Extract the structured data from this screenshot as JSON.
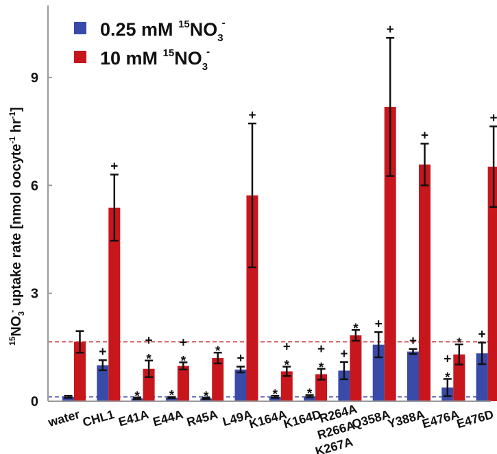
{
  "chart_data": {
    "type": "bar",
    "ylabel": {
      "sup_1": "15",
      "part_1": "NO",
      "sub_3": "3",
      "sup_minus": "-",
      "part_2": " uptake rate [nmol oocyte",
      "sup_neg1a": "-1",
      "part_3": " hr",
      "sup_neg1b": "-1",
      "part_4": "]"
    },
    "ylim": [
      0,
      11
    ],
    "yticks": [
      0,
      3,
      6,
      9
    ],
    "categories": [
      "water",
      "CHL1",
      "E41A",
      "E44A",
      "R45A",
      "L49A",
      "K164A",
      "K164D",
      "R264A\nR266A\nK267A",
      "Q358A",
      "Y388A",
      "E476A",
      "E476D"
    ],
    "series": [
      {
        "name": "0.25 mM 15NO3-",
        "legend": {
          "prefix": "0.25 mM ",
          "sup": "15",
          "main": "NO",
          "sub": "3",
          "sup2": "-"
        },
        "color": "#3a4aa8",
        "values": [
          0.12,
          1.0,
          0.08,
          0.1,
          0.08,
          0.88,
          0.12,
          0.14,
          0.85,
          1.57,
          1.38,
          0.38,
          1.33
        ],
        "errors": [
          0.03,
          0.14,
          0.02,
          0.02,
          0.02,
          0.08,
          0.03,
          0.03,
          0.24,
          0.35,
          0.07,
          0.24,
          0.3
        ],
        "marks": [
          [],
          [
            "+"
          ],
          [
            "*"
          ],
          [
            "*"
          ],
          [
            "*"
          ],
          [
            "+"
          ],
          [
            "*"
          ],
          [
            "*"
          ],
          [
            "+"
          ],
          [
            "+"
          ],
          [
            "+"
          ],
          [
            "*",
            "+"
          ],
          [
            "+"
          ]
        ]
      },
      {
        "name": "10 mM 15NO3-",
        "legend": {
          "prefix": "10 mM ",
          "sup": "15",
          "main": "NO",
          "sub": "3",
          "sup2": "-"
        },
        "color": "#c8161d",
        "values": [
          1.65,
          5.38,
          0.9,
          0.98,
          1.2,
          5.72,
          0.83,
          0.75,
          1.83,
          8.18,
          6.58,
          1.3,
          6.52
        ],
        "errors": [
          0.3,
          0.92,
          0.23,
          0.1,
          0.15,
          2.0,
          0.13,
          0.15,
          0.15,
          1.92,
          0.58,
          0.28,
          1.12
        ],
        "marks": [
          [],
          [
            "+"
          ],
          [
            "*",
            "+"
          ],
          [
            "*",
            "+"
          ],
          [
            "*"
          ],
          [
            "+"
          ],
          [
            "*",
            "+"
          ],
          [
            "*",
            "+"
          ],
          [
            "*"
          ],
          [
            "+"
          ],
          [
            "+"
          ],
          [
            "*"
          ],
          [
            "+"
          ]
        ]
      }
    ],
    "reference_lines": [
      {
        "y": 1.65,
        "color": "#c8161d",
        "style": "dashed"
      },
      {
        "y": 0.12,
        "color": "#3a4aa8",
        "style": "dashed"
      }
    ],
    "legend_position": "top-left"
  }
}
